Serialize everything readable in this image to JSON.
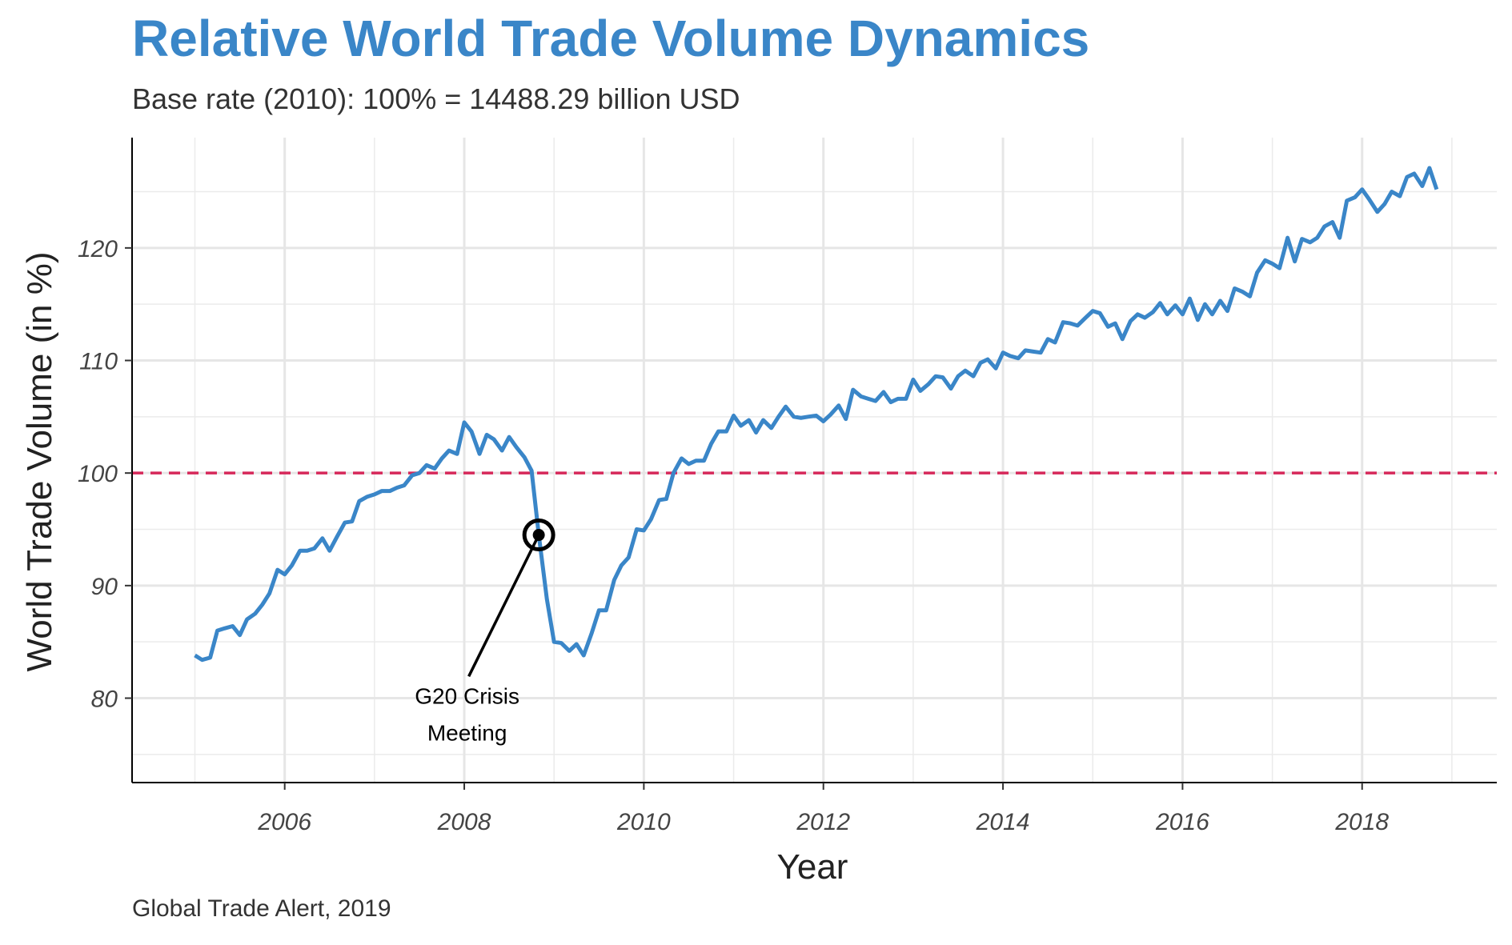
{
  "chart_data": {
    "type": "line",
    "title": "Relative World Trade Volume Dynamics",
    "subtitle": "Base rate (2010): 100% = 14488.29 billion USD",
    "caption": "Global Trade Alert, 2019",
    "xlabel": "Year",
    "ylabel": "World Trade Volume (in %)",
    "xlim": [
      2004.3,
      2019.5
    ],
    "ylim": [
      72.5,
      129.8
    ],
    "x_ticks": [
      2006,
      2008,
      2010,
      2012,
      2014,
      2016,
      2018
    ],
    "y_ticks": [
      80,
      90,
      100,
      110,
      120
    ],
    "grid": true,
    "colors": {
      "line": "#3a86c8",
      "title": "#3a86c8",
      "reference": "#d6285a",
      "annotation": "#000000"
    },
    "reference_line": {
      "y": 100,
      "style": "dashed"
    },
    "annotation": {
      "label_lines": [
        "G20 Crisis",
        "Meeting"
      ],
      "x": 2008.83,
      "y": 94.5,
      "label_x": 2008.05,
      "label_y": 82.5
    },
    "series": [
      {
        "x": [
          2005.0,
          2005.08,
          2005.17,
          2005.25,
          2005.33,
          2005.42,
          2005.5,
          2005.58,
          2005.67,
          2005.75,
          2005.83,
          2005.92,
          2006.0,
          2006.08,
          2006.17,
          2006.25,
          2006.33,
          2006.42,
          2006.5,
          2006.58,
          2006.67,
          2006.75,
          2006.83,
          2006.92,
          2007.0,
          2007.08,
          2007.17,
          2007.25,
          2007.33,
          2007.42,
          2007.5,
          2007.58,
          2007.67,
          2007.75,
          2007.83,
          2007.92,
          2008.0,
          2008.08,
          2008.17,
          2008.25,
          2008.33,
          2008.42,
          2008.5,
          2008.58,
          2008.67,
          2008.75,
          2008.83,
          2008.92,
          2009.0,
          2009.08,
          2009.17,
          2009.25,
          2009.33,
          2009.42,
          2009.5,
          2009.58,
          2009.67,
          2009.75,
          2009.83,
          2009.92,
          2010.0,
          2010.08,
          2010.17,
          2010.25,
          2010.33,
          2010.42,
          2010.5,
          2010.58,
          2010.67,
          2010.75,
          2010.83,
          2010.92,
          2011.0,
          2011.08,
          2011.17,
          2011.25,
          2011.33,
          2011.42,
          2011.5,
          2011.58,
          2011.67,
          2011.75,
          2011.83,
          2011.92,
          2012.0,
          2012.08,
          2012.17,
          2012.25,
          2012.33,
          2012.42,
          2012.5,
          2012.58,
          2012.67,
          2012.75,
          2012.83,
          2012.92,
          2013.0,
          2013.08,
          2013.17,
          2013.25,
          2013.33,
          2013.42,
          2013.5,
          2013.58,
          2013.67,
          2013.75,
          2013.83,
          2013.92,
          2014.0,
          2014.08,
          2014.17,
          2014.25,
          2014.33,
          2014.42,
          2014.5,
          2014.58,
          2014.67,
          2014.75,
          2014.83,
          2014.92,
          2015.0,
          2015.08,
          2015.17,
          2015.25,
          2015.33,
          2015.42,
          2015.5,
          2015.58,
          2015.67,
          2015.75,
          2015.83,
          2015.92,
          2016.0,
          2016.08,
          2016.17,
          2016.25,
          2016.33,
          2016.42,
          2016.5,
          2016.58,
          2016.67,
          2016.75,
          2016.83,
          2016.92,
          2017.0,
          2017.08,
          2017.17,
          2017.25,
          2017.33,
          2017.42,
          2017.5,
          2017.58,
          2017.67,
          2017.75,
          2017.83,
          2017.92,
          2018.0,
          2018.08,
          2018.17,
          2018.25,
          2018.33,
          2018.42,
          2018.5,
          2018.58,
          2018.67,
          2018.75,
          2018.83
        ],
        "values": [
          83.8,
          83.4,
          83.6,
          86.0,
          86.2,
          86.4,
          85.6,
          87.0,
          87.5,
          88.3,
          89.3,
          91.4,
          91.0,
          91.8,
          93.1,
          93.1,
          93.3,
          94.2,
          93.1,
          94.3,
          95.6,
          95.7,
          97.5,
          97.9,
          98.1,
          98.4,
          98.4,
          98.7,
          98.9,
          99.8,
          100.0,
          100.7,
          100.4,
          101.3,
          102.0,
          101.7,
          104.5,
          103.7,
          101.7,
          103.4,
          103.0,
          102.0,
          103.2,
          102.3,
          101.4,
          100.2,
          94.5,
          88.8,
          85.0,
          84.9,
          84.2,
          84.8,
          83.8,
          85.8,
          87.8,
          87.8,
          90.5,
          91.8,
          92.5,
          95.0,
          94.9,
          95.9,
          97.6,
          97.7,
          100.0,
          101.3,
          100.8,
          101.1,
          101.1,
          102.6,
          103.7,
          103.7,
          105.1,
          104.2,
          104.7,
          103.6,
          104.7,
          104.0,
          105.0,
          105.9,
          105.0,
          104.9,
          105.0,
          105.1,
          104.6,
          105.2,
          106.0,
          104.8,
          107.4,
          106.8,
          106.6,
          106.4,
          107.2,
          106.3,
          106.6,
          106.6,
          108.3,
          107.3,
          107.9,
          108.6,
          108.5,
          107.5,
          108.6,
          109.1,
          108.6,
          109.8,
          110.1,
          109.3,
          110.7,
          110.4,
          110.2,
          110.9,
          110.8,
          110.7,
          111.9,
          111.6,
          113.4,
          113.3,
          113.1,
          113.8,
          114.4,
          114.2,
          113.0,
          113.3,
          111.9,
          113.5,
          114.1,
          113.8,
          114.3,
          115.1,
          114.1,
          114.9,
          114.1,
          115.5,
          113.6,
          115.0,
          114.1,
          115.3,
          114.4,
          116.4,
          116.1,
          115.7,
          117.8,
          118.9,
          118.6,
          118.2,
          120.9,
          118.8,
          120.8,
          120.5,
          120.9,
          121.9,
          122.3,
          120.9,
          124.2,
          124.5,
          125.2,
          124.3,
          123.2,
          123.9,
          125.0,
          124.6,
          126.3,
          126.6,
          125.5,
          127.1,
          125.2
        ]
      }
    ]
  }
}
